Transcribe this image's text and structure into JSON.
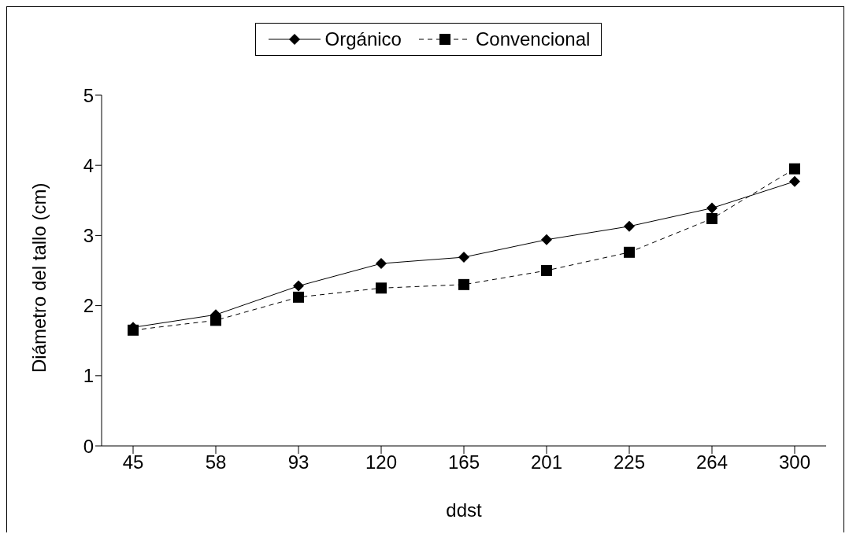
{
  "chart_data": {
    "type": "line",
    "xlabel": "ddst",
    "ylabel": "Diámetro del tallo (cm)",
    "categories": [
      "45",
      "58",
      "93",
      "120",
      "165",
      "201",
      "225",
      "264",
      "300"
    ],
    "series": [
      {
        "name": "Orgánico",
        "color": "#000000",
        "marker": "diamond",
        "line_style": "solid",
        "values": [
          1.69,
          1.87,
          2.28,
          2.6,
          2.69,
          2.94,
          3.13,
          3.39,
          3.77
        ]
      },
      {
        "name": "Convencional",
        "color": "#000000",
        "marker": "square",
        "line_style": "dashed",
        "values": [
          1.65,
          1.79,
          2.12,
          2.25,
          2.3,
          2.5,
          2.76,
          3.24,
          3.95
        ]
      }
    ],
    "ylim": [
      0,
      5
    ],
    "yticks": [
      0,
      1,
      2,
      3,
      4,
      5
    ],
    "grid": false,
    "legend": "top"
  }
}
